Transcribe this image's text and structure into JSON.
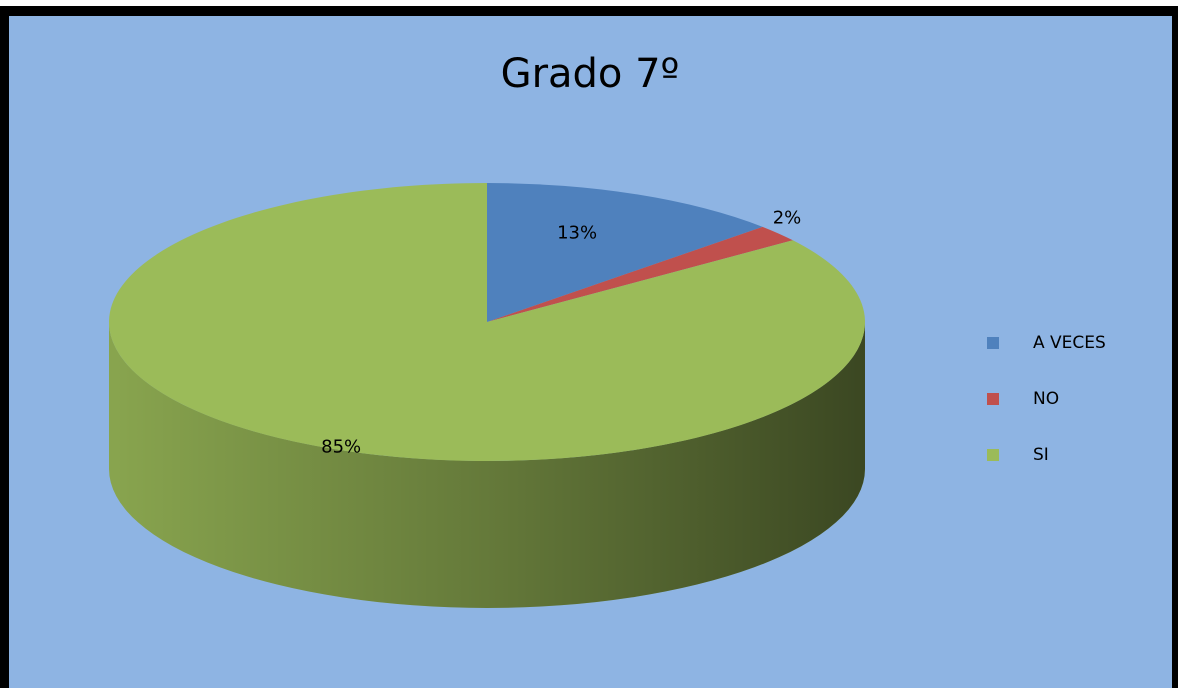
{
  "chart_data": {
    "type": "pie",
    "title": "Grado 7º",
    "categories": [
      "A VECES",
      "NO",
      "SI"
    ],
    "values": [
      13,
      2,
      85
    ],
    "value_labels": [
      "13%",
      "2%",
      "85%"
    ],
    "colors": [
      "#4f81bd",
      "#c0504d",
      "#9bbb59"
    ],
    "legend": "right"
  }
}
